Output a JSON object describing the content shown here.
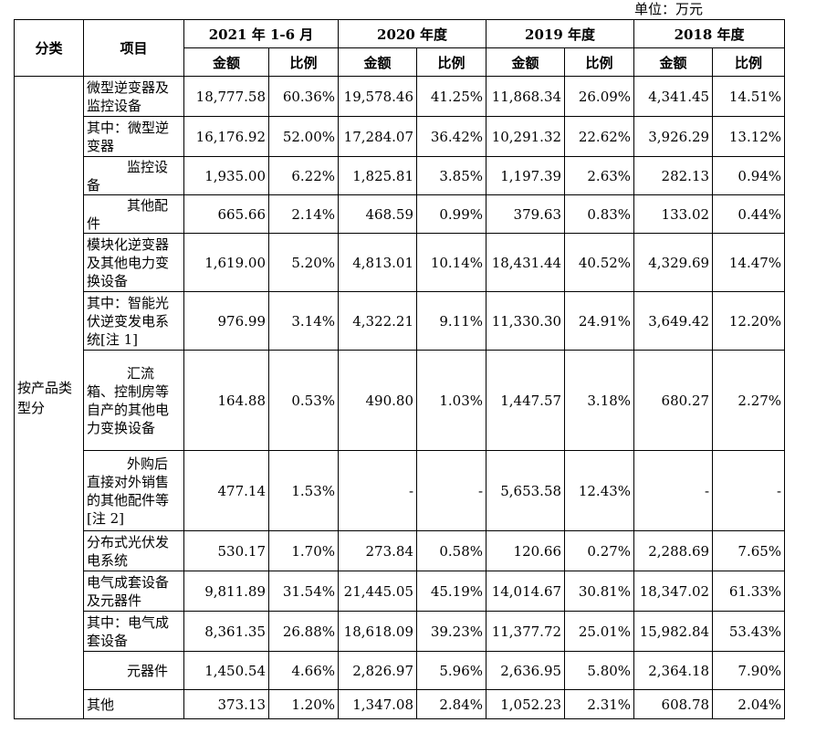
{
  "unit_label": "单位：万元",
  "header": {
    "category": "分类",
    "item": "项目",
    "periods": [
      "2021 年 1-6 月",
      "2020 年度",
      "2019 年度",
      "2018 年度"
    ],
    "amount": "金额",
    "ratio": "比例"
  },
  "category_label": "按产品类型分",
  "rows": [
    {
      "item": "微型逆变器及监控设备",
      "indent": false,
      "values": [
        "18,777.58",
        "60.36%",
        "19,578.46",
        "41.25%",
        "11,868.34",
        "26.09%",
        "4,341.45",
        "14.51%"
      ]
    },
    {
      "item": "其中：微型逆变器",
      "indent": false,
      "values": [
        "16,176.92",
        "52.00%",
        "17,284.07",
        "36.42%",
        "10,291.32",
        "22.62%",
        "3,926.29",
        "13.12%"
      ]
    },
    {
      "item": "监控设备",
      "indent": true,
      "values": [
        "1,935.00",
        "6.22%",
        "1,825.81",
        "3.85%",
        "1,197.39",
        "2.63%",
        "282.13",
        "0.94%"
      ]
    },
    {
      "item": "其他配件",
      "indent": true,
      "values": [
        "665.66",
        "2.14%",
        "468.59",
        "0.99%",
        "379.63",
        "0.83%",
        "133.02",
        "0.44%"
      ]
    },
    {
      "item": "模块化逆变器及其他电力变换设备",
      "indent": false,
      "values": [
        "1,619.00",
        "5.20%",
        "4,813.01",
        "10.14%",
        "18,431.44",
        "40.52%",
        "4,329.69",
        "14.47%"
      ]
    },
    {
      "item": "其中：智能光伏逆变发电系统[注 1]",
      "indent": false,
      "values": [
        "976.99",
        "3.14%",
        "4,322.21",
        "9.11%",
        "11,330.30",
        "24.91%",
        "3,649.42",
        "12.20%"
      ]
    },
    {
      "item": "汇流箱、控制房等自产的其他电力变换设备",
      "indent": true,
      "values": [
        "164.88",
        "0.53%",
        "490.80",
        "1.03%",
        "1,447.57",
        "3.18%",
        "680.27",
        "2.27%"
      ]
    },
    {
      "item": "外购后直接对外销售的其他配件等[注 2]",
      "indent": true,
      "values": [
        "477.14",
        "1.53%",
        "-",
        "-",
        "5,653.58",
        "12.43%",
        "-",
        "-"
      ]
    },
    {
      "item": "分布式光伏发电系统",
      "indent": false,
      "values": [
        "530.17",
        "1.70%",
        "273.84",
        "0.58%",
        "120.66",
        "0.27%",
        "2,288.69",
        "7.65%"
      ]
    },
    {
      "item": "电气成套设备及元器件",
      "indent": false,
      "values": [
        "9,811.89",
        "31.54%",
        "21,445.05",
        "45.19%",
        "14,014.67",
        "30.81%",
        "18,347.02",
        "61.33%"
      ]
    },
    {
      "item": "其中：电气成套设备",
      "indent": false,
      "values": [
        "8,361.35",
        "26.88%",
        "18,618.09",
        "39.23%",
        "11,377.72",
        "25.01%",
        "15,982.84",
        "53.43%"
      ]
    },
    {
      "item": "元器件",
      "indent": true,
      "values": [
        "1,450.54",
        "4.66%",
        "2,826.97",
        "5.96%",
        "2,636.95",
        "5.80%",
        "2,364.18",
        "7.90%"
      ]
    },
    {
      "item": "其他",
      "indent": false,
      "values": [
        "373.13",
        "1.20%",
        "1,347.08",
        "2.84%",
        "1,052.23",
        "2.31%",
        "608.78",
        "2.04%"
      ]
    }
  ]
}
